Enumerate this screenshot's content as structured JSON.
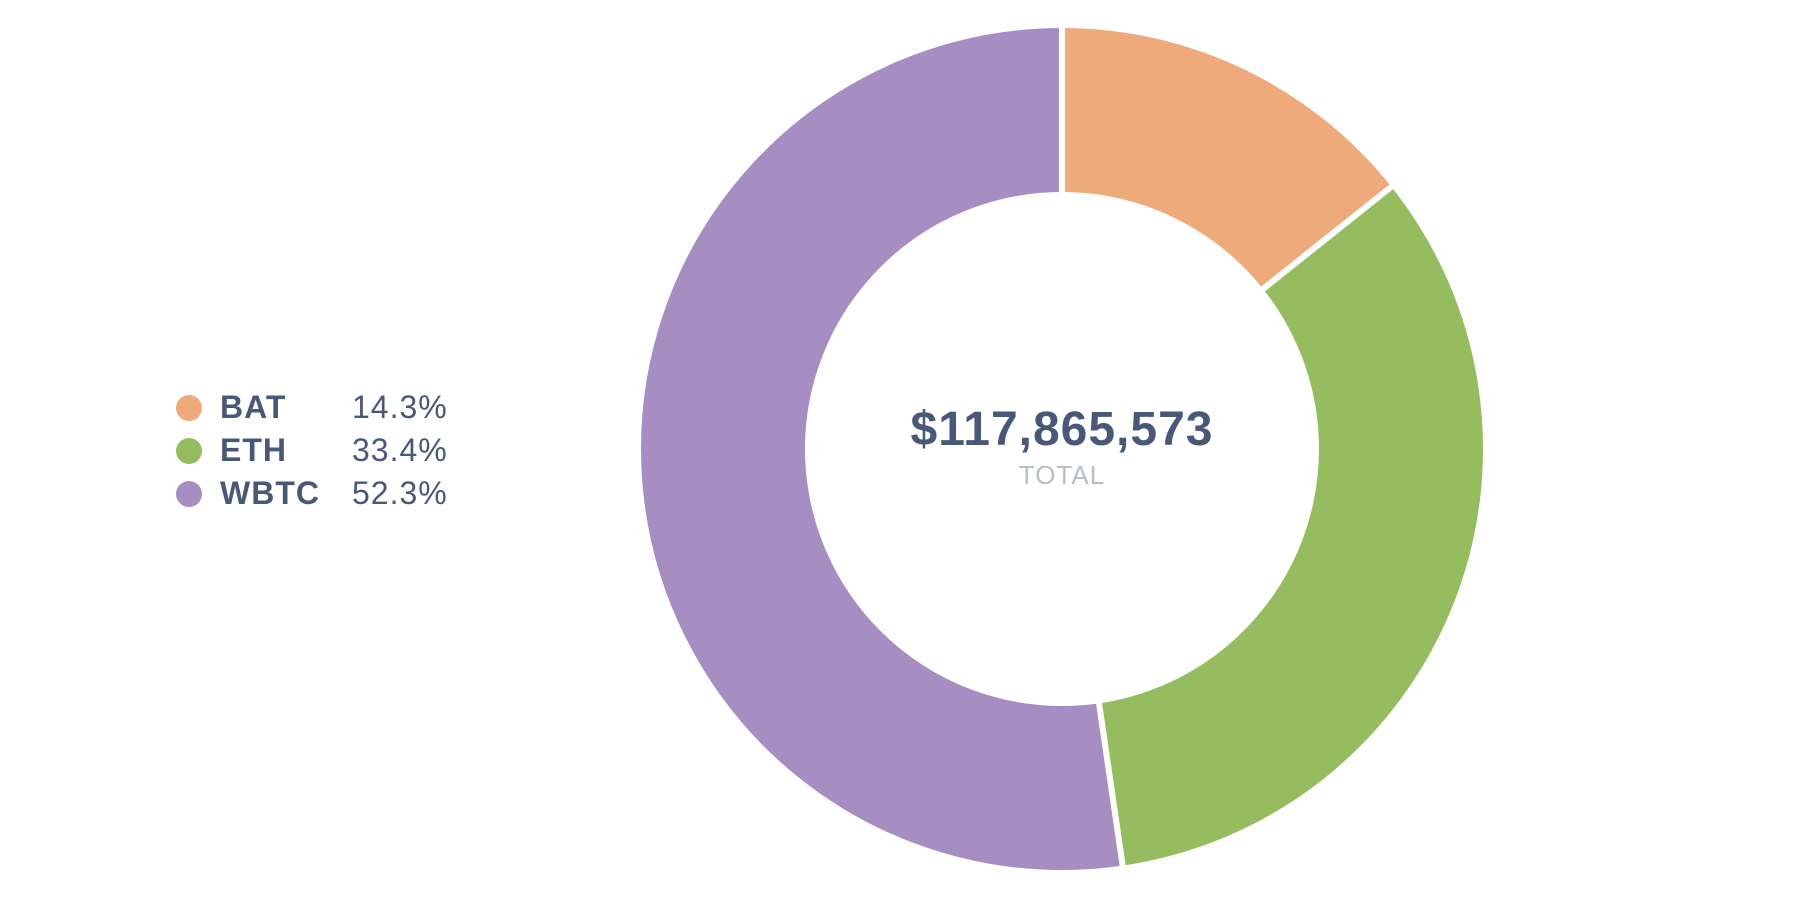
{
  "chart_data": {
    "type": "pie",
    "donut": true,
    "categories": [
      "BAT",
      "ETH",
      "WBTC"
    ],
    "values": [
      14.3,
      33.4,
      52.3
    ],
    "value_labels": [
      "14.3%",
      "33.4%",
      "52.3%"
    ],
    "colors": [
      "#eeaa7b",
      "#95bd5f",
      "#a68dc2"
    ],
    "center_value": "$117,865,573",
    "center_label": "TOTAL",
    "legend_position": "left",
    "title": ""
  }
}
